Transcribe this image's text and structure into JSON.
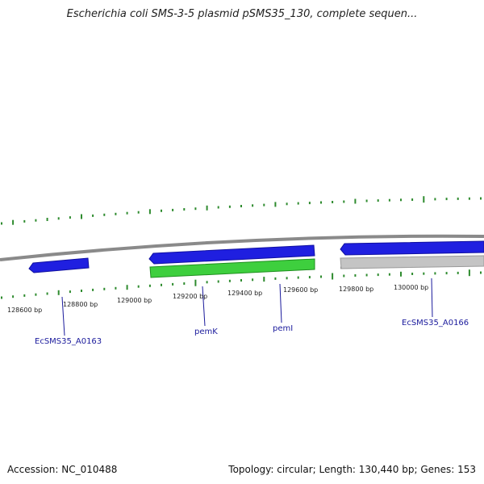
{
  "title": "Escherichia coli SMS-3-5 plasmid pSMS35_130, complete sequen...",
  "footer": {
    "accession": "Accession: NC_010488",
    "topology": "Topology: circular; Length: 130,440 bp; Genes: 153"
  },
  "colors": {
    "backbone": "#8a8a8a",
    "forward_gene": "#1f1fe0",
    "reverse_gene": "#3ecf3e",
    "other_gene": "#c4c4c4",
    "gc_tick": "#2e8b2e",
    "label": "#1a1a9c"
  },
  "tick_labels": [
    "128600 bp",
    "128800 bp",
    "129000 bp",
    "129200 bp",
    "129400 bp",
    "129600 bp",
    "129800 bp",
    "130000 bp"
  ],
  "genes": [
    {
      "label": "EcSMS35_A0163",
      "track": "forward"
    },
    {
      "label": "pemK",
      "track": "forward"
    },
    {
      "label": "pemI",
      "track": "forward"
    },
    {
      "label": "EcSMS35_A0166",
      "track": "forward"
    },
    {
      "label": "",
      "track": "reverse"
    },
    {
      "label": "",
      "track": "other"
    }
  ]
}
